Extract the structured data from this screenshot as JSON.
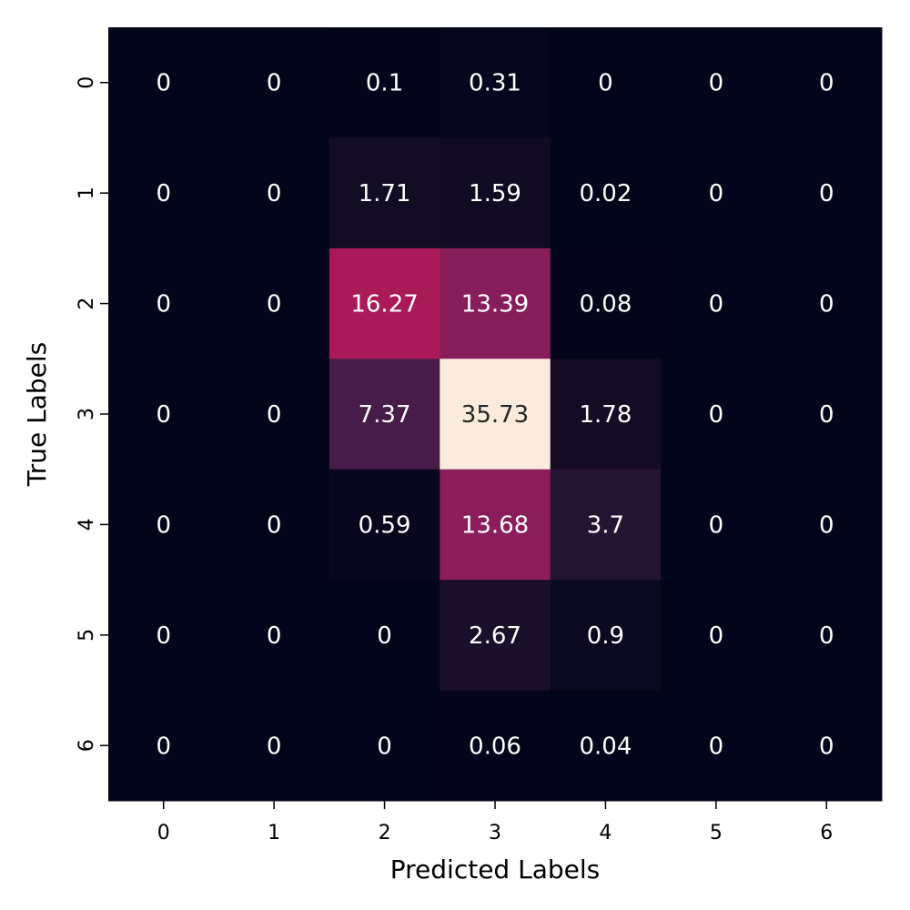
{
  "chart_data": {
    "type": "heatmap",
    "title": "",
    "xlabel": "Predicted Labels",
    "ylabel": "True Labels",
    "x_categories": [
      "0",
      "1",
      "2",
      "3",
      "4",
      "5",
      "6"
    ],
    "y_categories": [
      "0",
      "1",
      "2",
      "3",
      "4",
      "5",
      "6"
    ],
    "values": [
      [
        0,
        0,
        0.1,
        0.31,
        0,
        0,
        0
      ],
      [
        0,
        0,
        1.71,
        1.59,
        0.02,
        0,
        0
      ],
      [
        0,
        0,
        16.27,
        13.39,
        0.08,
        0,
        0
      ],
      [
        0,
        0,
        7.37,
        35.73,
        1.78,
        0,
        0
      ],
      [
        0,
        0,
        0.59,
        13.68,
        3.7,
        0,
        0
      ],
      [
        0,
        0,
        0,
        2.67,
        0.9,
        0,
        0
      ],
      [
        0,
        0,
        0,
        0.06,
        0.04,
        0,
        0
      ]
    ],
    "value_labels": [
      [
        "0",
        "0",
        "0.1",
        "0.31",
        "0",
        "0",
        "0"
      ],
      [
        "0",
        "0",
        "1.71",
        "1.59",
        "0.02",
        "0",
        "0"
      ],
      [
        "0",
        "0",
        "16.27",
        "13.39",
        "0.08",
        "0",
        "0"
      ],
      [
        "0",
        "0",
        "7.37",
        "35.73",
        "1.78",
        "0",
        "0"
      ],
      [
        "0",
        "0",
        "0.59",
        "13.68",
        "3.7",
        "0",
        "0"
      ],
      [
        "0",
        "0",
        "0",
        "2.67",
        "0.9",
        "0",
        "0"
      ],
      [
        "0",
        "0",
        "0",
        "0.06",
        "0.04",
        "0",
        "0"
      ]
    ],
    "colorscale": "rocket",
    "vmin": 0,
    "vmax": 35.73,
    "colorbar": false
  }
}
